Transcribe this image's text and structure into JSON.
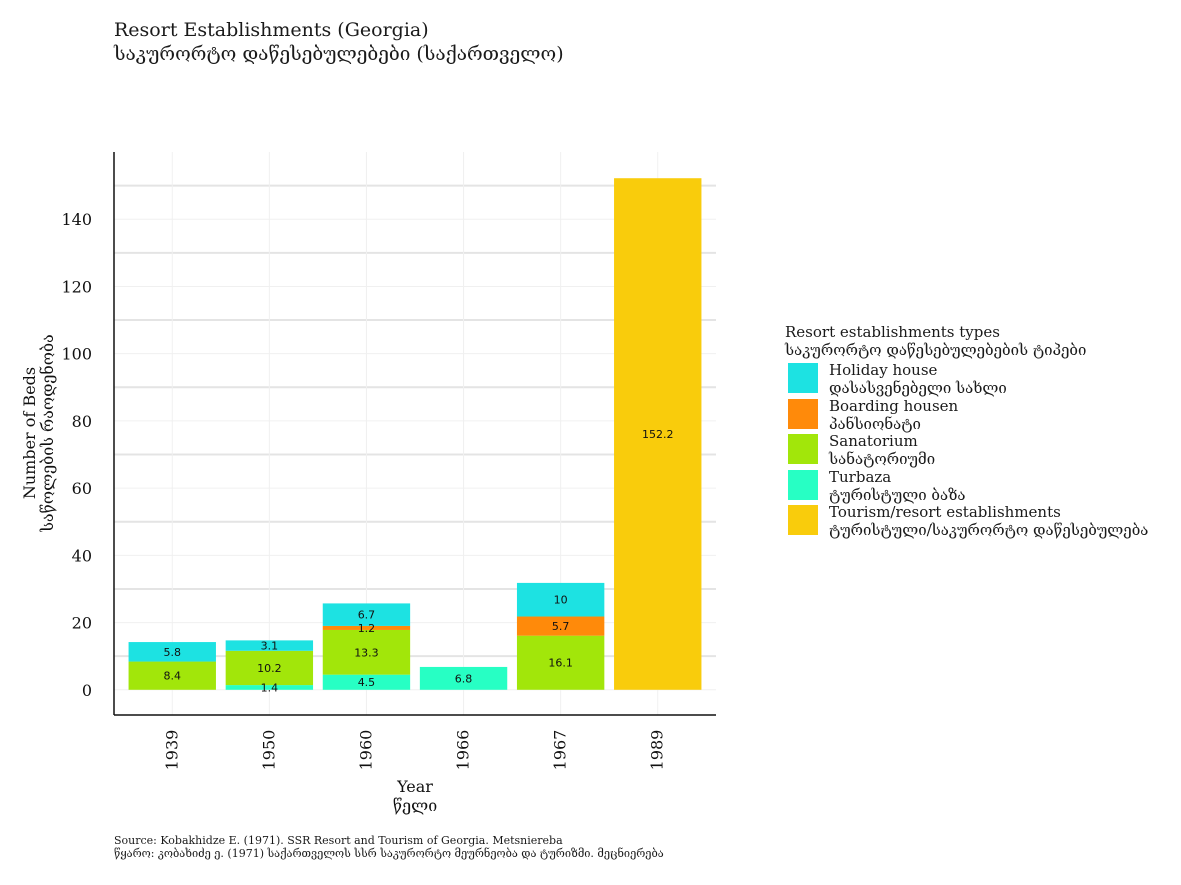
{
  "title": {
    "line1": "Resort Establishments (Georgia)",
    "line2": "საკურორტო დაწესებულებები (საქართველო)"
  },
  "legend": {
    "title_line1": "Resort establishments types",
    "title_line2": "საკურორტო დაწესებულებების ტიპები",
    "items": [
      {
        "line1": "Holiday house",
        "line2": "დასასვენებელი სახლი",
        "color": "#1de2e2"
      },
      {
        "line1": "Boarding housen",
        "line2": "პანსიონატი",
        "color": "#ff8a0a"
      },
      {
        "line1": "Sanatorium",
        "line2": "სანატორიუმი",
        "color": "#a2e60a"
      },
      {
        "line1": "Turbaza",
        "line2": "ტურისტული ბაზა",
        "color": "#27ffc4"
      },
      {
        "line1": "Tourism/resort establishments",
        "line2": "ტურისტული/საკურორტო დაწესებულება",
        "color": "#f9cc0c"
      }
    ]
  },
  "source": {
    "line1": "Source: Kobakhidze E. (1971). SSR Resort and Tourism of Georgia. Metsniereba",
    "line2": "წყარო: კობახიძე ე. (1971) საქართველოს სსრ საკურორტო მეურნეობა და ტურიზმი. მეცნიერება"
  },
  "chart_data": {
    "type": "bar",
    "stacked": true,
    "categories": [
      "1939",
      "1950",
      "1960",
      "1966",
      "1967",
      "1989"
    ],
    "xlabel_line1": "Year",
    "xlabel_line2": "წელი",
    "ylabel_line1": "Number of Beds",
    "ylabel_line2": "საწოლების რაოდენობა",
    "ylim": [
      -7.5,
      160
    ],
    "yticks": [
      0,
      20,
      40,
      60,
      80,
      100,
      120,
      140
    ],
    "grid": true,
    "legend_position": "right",
    "series": [
      {
        "name": "Turbaza",
        "color": "#27ffc4",
        "values": [
          null,
          1.4,
          4.5,
          6.8,
          null,
          null
        ]
      },
      {
        "name": "Sanatorium",
        "color": "#a2e60a",
        "values": [
          8.4,
          10.2,
          13.3,
          null,
          16.1,
          null
        ]
      },
      {
        "name": "Boarding housen",
        "color": "#ff8a0a",
        "values": [
          null,
          null,
          1.2,
          null,
          5.7,
          null
        ]
      },
      {
        "name": "Holiday house",
        "color": "#1de2e2",
        "values": [
          5.8,
          3.1,
          6.7,
          null,
          10,
          null
        ]
      },
      {
        "name": "Tourism/resort establishments",
        "color": "#f9cc0c",
        "values": [
          null,
          null,
          null,
          null,
          null,
          152.2
        ]
      }
    ]
  }
}
